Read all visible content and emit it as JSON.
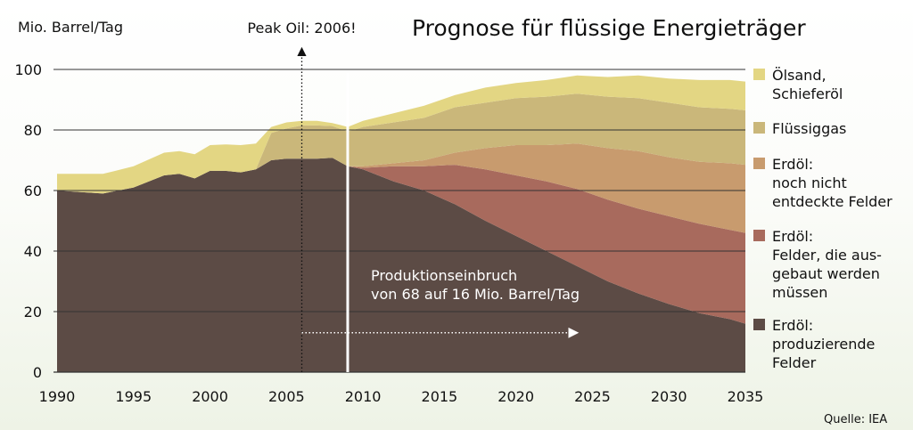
{
  "chart_data": {
    "type": "area",
    "title": "Prognose für flüssige Energieträger",
    "ylabel": "Mio. Barrel/Tag",
    "xlim": [
      1990,
      2035
    ],
    "ylim": [
      0,
      100
    ],
    "x_ticks": [
      "1990",
      "1995",
      "2000",
      "2005",
      "2010",
      "2015",
      "2020",
      "2025",
      "2030",
      "2035"
    ],
    "y_ticks": [
      "0",
      "20",
      "40",
      "60",
      "80",
      "100"
    ],
    "grid": true,
    "legend_position": "right",
    "stacked": true,
    "series": [
      {
        "name": "Erdöl: produzierende Felder",
        "color": "#5c4b45",
        "points": [
          [
            1990,
            60
          ],
          [
            1993,
            59
          ],
          [
            1995,
            61
          ],
          [
            1997,
            65
          ],
          [
            1998,
            65.5
          ],
          [
            1999,
            64
          ],
          [
            2000,
            66.5
          ],
          [
            2001,
            66.5
          ],
          [
            2002,
            66
          ],
          [
            2003,
            67
          ],
          [
            2004,
            70
          ],
          [
            2005,
            70.5
          ],
          [
            2007,
            70.5
          ],
          [
            2008,
            70.8
          ],
          [
            2009,
            68
          ],
          [
            2010,
            67
          ],
          [
            2012,
            63
          ],
          [
            2014,
            60
          ],
          [
            2016,
            55.5
          ],
          [
            2018,
            50
          ],
          [
            2020,
            45
          ],
          [
            2022,
            40
          ],
          [
            2024,
            35
          ],
          [
            2026,
            30
          ],
          [
            2028,
            26
          ],
          [
            2030,
            22.5
          ],
          [
            2032,
            19.5
          ],
          [
            2034,
            17.5
          ],
          [
            2035,
            16
          ]
        ]
      },
      {
        "name": "Erdöl: Felder, die ausgebaut werden müssen",
        "color": "#a86a5d",
        "points": [
          [
            1990,
            0
          ],
          [
            2009,
            0
          ],
          [
            2010,
            0.5
          ],
          [
            2012,
            5
          ],
          [
            2014,
            8
          ],
          [
            2016,
            13
          ],
          [
            2018,
            17
          ],
          [
            2020,
            20
          ],
          [
            2022,
            23
          ],
          [
            2024,
            25.5
          ],
          [
            2026,
            27
          ],
          [
            2028,
            28
          ],
          [
            2030,
            29
          ],
          [
            2032,
            29.5
          ],
          [
            2034,
            29.5
          ],
          [
            2035,
            30
          ]
        ]
      },
      {
        "name": "Erdöl: noch nicht entdeckte Felder",
        "color": "#c89b6e",
        "points": [
          [
            1990,
            0
          ],
          [
            2009,
            0
          ],
          [
            2010,
            0.5
          ],
          [
            2012,
            1
          ],
          [
            2014,
            2
          ],
          [
            2016,
            4
          ],
          [
            2018,
            7
          ],
          [
            2020,
            10
          ],
          [
            2022,
            12
          ],
          [
            2024,
            15
          ],
          [
            2026,
            17
          ],
          [
            2028,
            19
          ],
          [
            2030,
            19.5
          ],
          [
            2032,
            20.5
          ],
          [
            2034,
            22
          ],
          [
            2035,
            22.5
          ]
        ]
      },
      {
        "name": "Flüssiggas",
        "color": "#cab77a",
        "points": [
          [
            1990,
            0
          ],
          [
            2003,
            0
          ],
          [
            2004,
            9
          ],
          [
            2005,
            10
          ],
          [
            2006,
            11
          ],
          [
            2007,
            11
          ],
          [
            2008,
            10.5
          ],
          [
            2009,
            11.5
          ],
          [
            2010,
            13
          ],
          [
            2012,
            13.5
          ],
          [
            2014,
            14
          ],
          [
            2016,
            15
          ],
          [
            2018,
            15
          ],
          [
            2020,
            15.5
          ],
          [
            2022,
            16
          ],
          [
            2024,
            16.5
          ],
          [
            2026,
            17
          ],
          [
            2028,
            17.5
          ],
          [
            2030,
            18
          ],
          [
            2032,
            18
          ],
          [
            2034,
            18
          ],
          [
            2035,
            18
          ]
        ]
      },
      {
        "name": "Ölsand, Schieferöl",
        "color": "#e3d683",
        "points": [
          [
            1990,
            5.5
          ],
          [
            1993,
            6.5
          ],
          [
            1995,
            7
          ],
          [
            1997,
            7.5
          ],
          [
            1998,
            7.5
          ],
          [
            1999,
            8
          ],
          [
            2000,
            8.5
          ],
          [
            2002,
            9
          ],
          [
            2003,
            8.5
          ],
          [
            2004,
            2
          ],
          [
            2005,
            2
          ],
          [
            2006,
            1.5
          ],
          [
            2007,
            1.5
          ],
          [
            2008,
            1
          ],
          [
            2009,
            1.5
          ],
          [
            2010,
            2
          ],
          [
            2012,
            3
          ],
          [
            2014,
            4
          ],
          [
            2016,
            4
          ],
          [
            2018,
            5
          ],
          [
            2020,
            5
          ],
          [
            2022,
            5.5
          ],
          [
            2024,
            6
          ],
          [
            2026,
            6.5
          ],
          [
            2028,
            7.5
          ],
          [
            2030,
            8
          ],
          [
            2032,
            9
          ],
          [
            2034,
            9.5
          ],
          [
            2035,
            9.5
          ]
        ]
      }
    ],
    "annotations": {
      "peak_oil": {
        "label": "Peak Oil: 2006!",
        "year": 2006
      },
      "now_line_year": 2009,
      "decline_label_line1": "Produktionseinbruch",
      "decline_label_line2": "von 68 auf 16 Mio. Barrel/Tag",
      "decline_arrow_years": [
        2006,
        2024
      ],
      "decline_arrow_value": 13
    },
    "legend": [
      {
        "lines": [
          "Ölsand,",
          "Schieferöl"
        ],
        "color": "#e3d683"
      },
      {
        "lines": [
          "Flüssiggas"
        ],
        "color": "#cab77a"
      },
      {
        "lines": [
          "Erdöl:",
          "noch nicht",
          "entdeckte Felder"
        ],
        "color": "#c89b6e"
      },
      {
        "lines": [
          "Erdöl:",
          "Felder, die aus-",
          "gebaut werden",
          "müssen"
        ],
        "color": "#a86a5d"
      },
      {
        "lines": [
          "Erdöl:",
          "produzierende",
          "Felder"
        ],
        "color": "#5c4b45"
      }
    ],
    "source": "Quelle: IEA"
  }
}
